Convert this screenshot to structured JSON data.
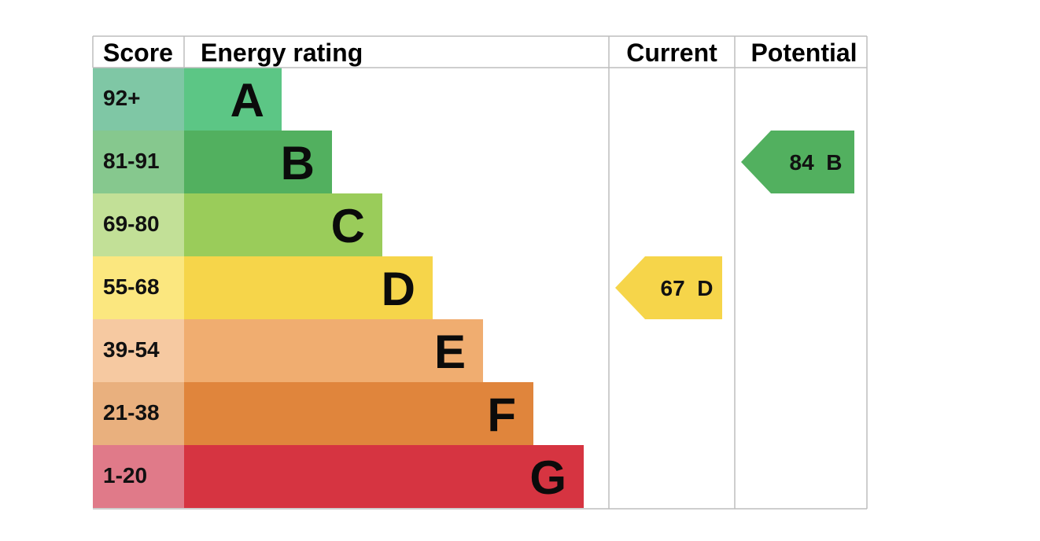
{
  "chart_data": {
    "type": "bar",
    "headers": {
      "score": "Score",
      "rating": "Energy rating",
      "current": "Current",
      "potential": "Potential"
    },
    "bands": [
      {
        "letter": "A",
        "range": "92+",
        "score_min": 92,
        "color": "#5cc685",
        "score_bg": "#7fc7a5"
      },
      {
        "letter": "B",
        "range": "81-91",
        "score_min": 81,
        "color": "#52b05f",
        "score_bg": "#86c88e"
      },
      {
        "letter": "C",
        "range": "69-80",
        "score_min": 69,
        "color": "#9acc5a",
        "score_bg": "#c2e097"
      },
      {
        "letter": "D",
        "range": "55-68",
        "score_min": 55,
        "color": "#f6d54a",
        "score_bg": "#fbe77f"
      },
      {
        "letter": "E",
        "range": "39-54",
        "score_min": 39,
        "color": "#f0ad70",
        "score_bg": "#f6c9a1"
      },
      {
        "letter": "F",
        "range": "21-38",
        "score_min": 21,
        "color": "#e0853c",
        "score_bg": "#e9b07e"
      },
      {
        "letter": "G",
        "range": "1-20",
        "score_min": 1,
        "color": "#d63441",
        "score_bg": "#e07a89"
      }
    ],
    "current": {
      "score": 67,
      "band": "D",
      "label": "67  D",
      "color": "#f6d54a"
    },
    "potential": {
      "score": 84,
      "band": "B",
      "label": "84  B",
      "color": "#52b05f"
    }
  }
}
